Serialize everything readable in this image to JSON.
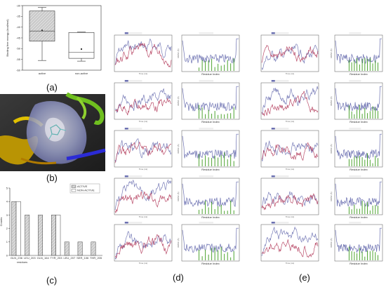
{
  "panel_labels": {
    "a": "(a)",
    "b": "(b)",
    "c": "(c)",
    "d": "(d)",
    "e": "(e)"
  },
  "chart_data": [
    {
      "type": "box",
      "panel": "a",
      "ylabel": "Binding free energy (kcal/mol)",
      "ylim": [
        -60,
        -30
      ],
      "yticks": [
        "-30",
        "-35",
        "-40",
        "-45",
        "-50",
        "-55",
        "-60"
      ],
      "categories": [
        "active",
        "non-active"
      ],
      "boxes": [
        {
          "name": "active",
          "min": -55.5,
          "q1": -46.5,
          "median": -41.8,
          "q3": -32.5,
          "max": -30.8,
          "mean": -41.5,
          "hatched": true
        },
        {
          "name": "non-active",
          "min": -55.8,
          "q1": -54.5,
          "median": -51.6,
          "q3": -42.5,
          "max": -42.3,
          "mean": -50.2,
          "hatched": false
        }
      ]
    },
    {
      "type": "bar",
      "panel": "c",
      "ylabel": "Counts",
      "xlabel": "residues",
      "ylim": [
        0,
        5
      ],
      "yticks": [
        "0",
        "1",
        "2",
        "3",
        "4",
        "5"
      ],
      "categories": [
        "GLN_236",
        "LEU_203",
        "GLN_164",
        "TYR_203",
        "LEU_207",
        "SER_106",
        "THR_205"
      ],
      "series": [
        {
          "name": "ACTIVE",
          "values": [
            4,
            3,
            3,
            3,
            1,
            1,
            1
          ],
          "color": "#d9d9d9",
          "hatched": true
        },
        {
          "name": "NON-ACTIVE",
          "values": [
            4,
            0,
            0,
            3,
            0,
            0,
            0
          ],
          "color": "#ffffff",
          "hatched": false
        }
      ],
      "legend_colors": [
        "#d9d9d9",
        "#ffffff"
      ],
      "legend_position": "top-right"
    },
    {
      "type": "line",
      "panel": "d-e",
      "xlabel_rmsd": "Time (ns)",
      "xlabel_rmsf": "Residue Index",
      "ylabel_rmsf": "RMSF (Å)",
      "colors": {
        "blue": "#6a6fb0",
        "red": "#b33a5a",
        "green": "#3a9a1a",
        "grey": "#888888"
      }
    }
  ]
}
